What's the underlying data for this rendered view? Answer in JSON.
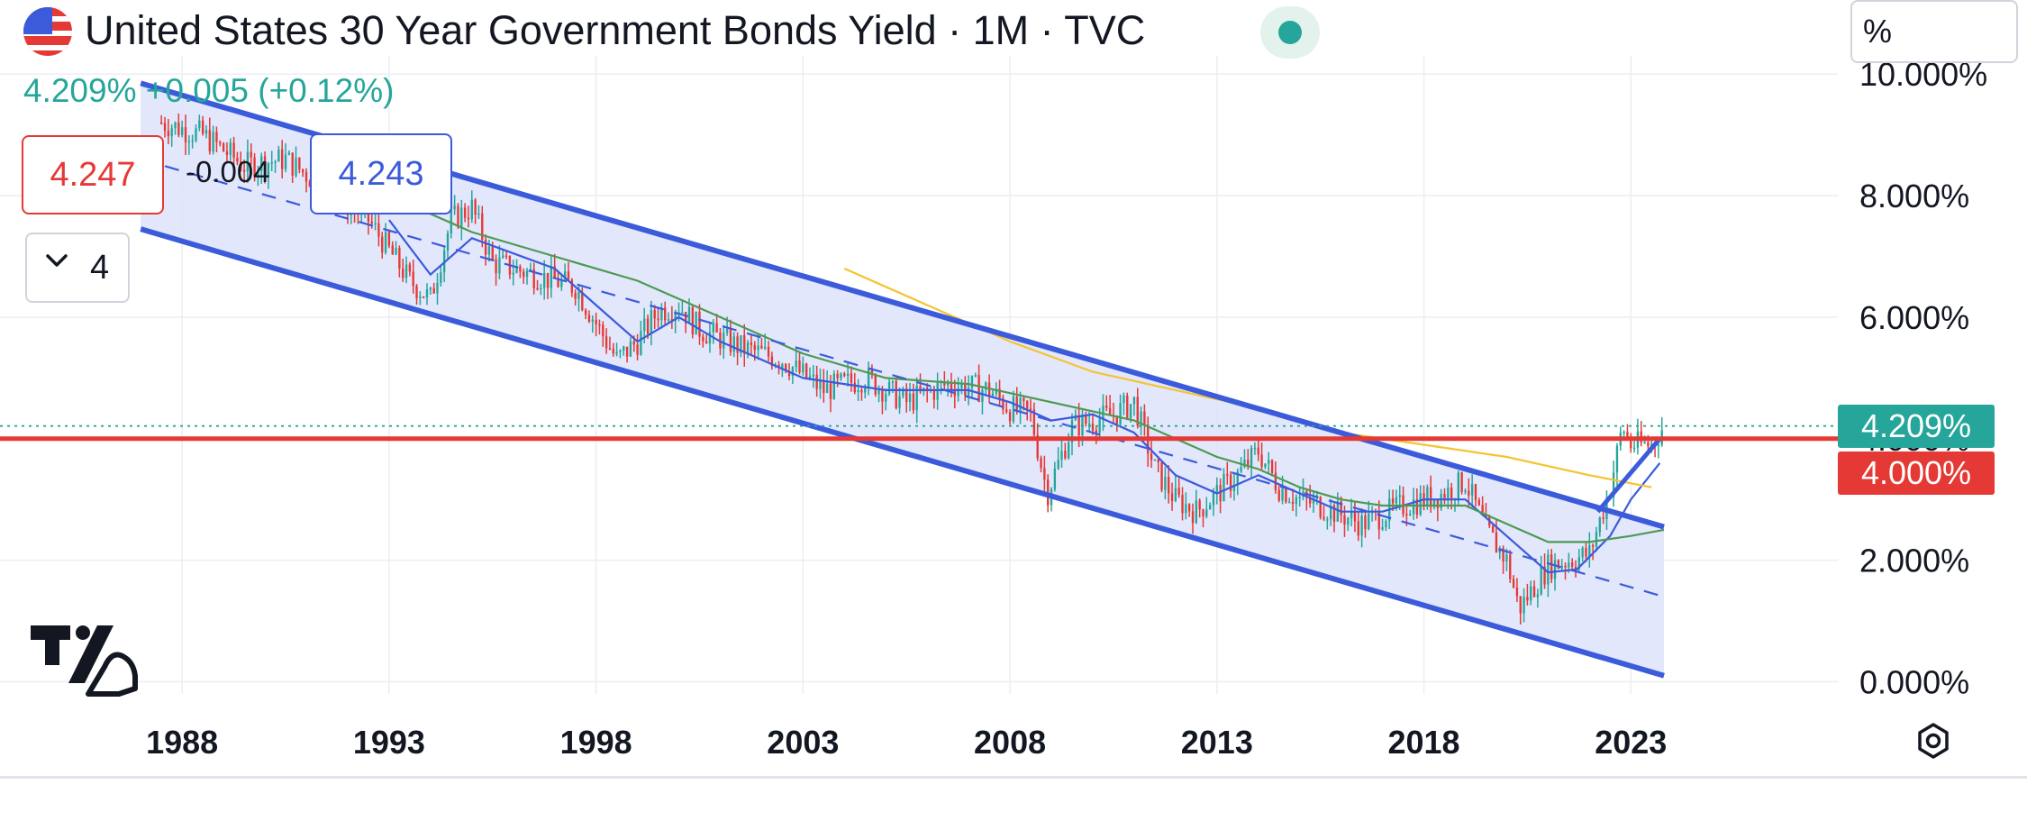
{
  "header": {
    "title": "United States 30 Year Government Bonds Yield · 1M · TVC",
    "change": "4.209%  +0.005 (+0.12%)",
    "bid": "4.247",
    "spread": "-0.004",
    "ask": "4.243",
    "indicators_count": "4",
    "unit": "%"
  },
  "price_tags": {
    "current": "4.209%",
    "level": "4.000%"
  },
  "colors": {
    "channel": "#3b5bdb",
    "channel_fill": "#dde3fb",
    "up": "#26a69a",
    "down": "#e53935",
    "ma_blue": "#3b5bdb",
    "ma_green": "#4c9a52",
    "ma_yellow": "#f4c430"
  },
  "chart_data": {
    "type": "candlestick",
    "interval": "1M",
    "x_ticks": [
      "1988",
      "1993",
      "1998",
      "2003",
      "2008",
      "2013",
      "2018",
      "2023"
    ],
    "y_ticks": [
      {
        "value": 0,
        "label": "0.000%"
      },
      {
        "value": 2,
        "label": "2.000%"
      },
      {
        "value": 4,
        "label": "4.000%"
      },
      {
        "value": 6,
        "label": "6.000%"
      },
      {
        "value": 8,
        "label": "8.000%"
      },
      {
        "value": 10,
        "label": "10.000%"
      }
    ],
    "xlim": [
      1983.6,
      2028.0
    ],
    "ylim": [
      -0.2,
      10.3
    ],
    "price_series": {
      "x": [
        1987.5,
        1988.5,
        1989.5,
        1990.5,
        1991.5,
        1992.5,
        1993.5,
        1994.0,
        1994.5,
        1995.0,
        1995.5,
        1996.5,
        1997.5,
        1998.5,
        1999.0,
        1999.5,
        2000.0,
        2000.5,
        2001.5,
        2002.5,
        2003.5,
        2004.5,
        2005.5,
        2006.5,
        2007.5,
        2008.0,
        2008.5,
        2008.9,
        2009.5,
        2010.5,
        2011.0,
        2011.5,
        2012.0,
        2012.5,
        2013.5,
        2014.0,
        2014.5,
        2015.0,
        2015.5,
        2016.5,
        2017.5,
        2018.5,
        2019.0,
        2019.5,
        2020.0,
        2020.3,
        2020.5,
        2021.0,
        2021.5,
        2022.0,
        2022.5,
        2022.8,
        2023.0,
        2023.5,
        2023.8
      ],
      "y": [
        9.2,
        9.0,
        8.5,
        8.6,
        8.1,
        7.6,
        6.6,
        6.3,
        7.6,
        7.8,
        6.9,
        6.7,
        6.5,
        5.3,
        5.6,
        6.1,
        6.2,
        5.8,
        5.5,
        5.3,
        4.8,
        5.0,
        4.6,
        4.9,
        4.8,
        4.5,
        4.4,
        3.1,
        4.2,
        4.4,
        4.6,
        3.5,
        3.0,
        2.8,
        3.4,
        3.8,
        3.2,
        3.0,
        2.9,
        2.6,
        2.9,
        3.1,
        3.3,
        2.5,
        2.0,
        1.2,
        1.4,
        1.9,
        2.0,
        2.1,
        3.2,
        4.2,
        3.9,
        3.9,
        4.21
      ]
    },
    "channel": {
      "upper": {
        "x": [
          1987.0,
          2023.8
        ],
        "y": [
          9.85,
          2.55
        ]
      },
      "middle": {
        "x": [
          1987.0,
          2023.8
        ],
        "y": [
          8.6,
          1.4
        ]
      },
      "lower": {
        "x": [
          1987.0,
          2023.8
        ],
        "y": [
          7.45,
          0.1
        ]
      }
    },
    "moving_averages": [
      {
        "color": "blue",
        "x": [
          1993.0,
          1994.0,
          1995.0,
          1997.0,
          1998.0,
          1999.0,
          2000.0,
          2001.0,
          2003.0,
          2005.0,
          2007.0,
          2008.0,
          2009.0,
          2010.0,
          2011.0,
          2012.0,
          2013.0,
          2014.0,
          2015.0,
          2016.0,
          2017.0,
          2018.0,
          2019.0,
          2020.0,
          2021.0,
          2021.7,
          2022.5,
          2023.0,
          2023.7
        ],
        "y": [
          7.6,
          6.7,
          7.3,
          6.8,
          6.2,
          5.6,
          6.0,
          5.6,
          5.0,
          4.8,
          4.8,
          4.6,
          4.3,
          4.4,
          4.1,
          3.4,
          3.1,
          3.4,
          3.1,
          2.8,
          2.8,
          3.0,
          3.0,
          2.4,
          1.8,
          1.85,
          2.4,
          3.0,
          3.6
        ]
      },
      {
        "color": "green",
        "x": [
          1993.0,
          1995.0,
          1997.0,
          1999.0,
          2001.0,
          2003.0,
          2005.0,
          2007.0,
          2009.0,
          2011.0,
          2012.0,
          2013.0,
          2014.0,
          2015.0,
          2016.0,
          2017.0,
          2018.0,
          2019.0,
          2020.0,
          2021.0,
          2022.0,
          2023.0,
          2023.8
        ],
        "y": [
          8.0,
          7.4,
          7.0,
          6.6,
          6.0,
          5.4,
          5.0,
          4.9,
          4.6,
          4.3,
          4.0,
          3.7,
          3.5,
          3.2,
          3.0,
          2.9,
          2.9,
          2.9,
          2.6,
          2.3,
          2.3,
          2.4,
          2.5
        ]
      },
      {
        "color": "yellow",
        "x": [
          2004.0,
          2006.0,
          2008.0,
          2010.0,
          2012.0,
          2014.0,
          2016.0,
          2018.0,
          2020.0,
          2022.0,
          2023.5
        ],
        "y": [
          6.8,
          6.2,
          5.6,
          5.1,
          4.8,
          4.5,
          4.1,
          3.9,
          3.7,
          3.4,
          3.2
        ]
      }
    ],
    "horizontal_level": 4.0,
    "current_value": 4.209,
    "short_trend": {
      "x": [
        2022.2,
        2023.7
      ],
      "y": [
        2.8,
        4.0
      ]
    }
  }
}
